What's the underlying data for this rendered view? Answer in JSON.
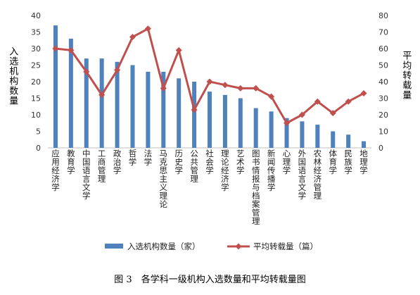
{
  "chart_data": {
    "type": "bar",
    "categories": [
      "应用经济学",
      "教育学",
      "中国语言文学",
      "工商管理",
      "政治学",
      "哲学",
      "法学",
      "马克思主义理论",
      "历史学",
      "公共管理",
      "社会学",
      "理论经济学",
      "艺术学",
      "图书情报与档案管理",
      "新闻传播学",
      "心理学",
      "外国语言文学",
      "农林经济管理",
      "体育学",
      "民族学",
      "地理学"
    ],
    "series": [
      {
        "name": "入选机构数量（家）",
        "axis": "left",
        "kind": "bar",
        "color": "#4f81bd",
        "values": [
          37,
          33,
          27,
          27,
          26,
          25,
          23,
          23,
          21,
          20,
          17,
          16,
          15,
          12,
          11,
          9,
          8,
          7,
          5,
          4,
          2
        ]
      },
      {
        "name": "平均转载量（篇）",
        "axis": "right",
        "kind": "line",
        "color": "#c0504d",
        "values": [
          60,
          59,
          46,
          32,
          47,
          67,
          72,
          36,
          59,
          23,
          40,
          38,
          36,
          36,
          31,
          15,
          20,
          28,
          21,
          28,
          33
        ]
      }
    ],
    "ylabel": "入选机构数量",
    "y2label": "平均转载量",
    "ylim": [
      0,
      40
    ],
    "yticks": [
      0,
      5,
      10,
      15,
      20,
      25,
      30,
      35,
      40
    ],
    "y2lim": [
      0,
      80
    ],
    "y2ticks": [
      0,
      10,
      20,
      30,
      40,
      50,
      60,
      70,
      80
    ],
    "legend_position": "bottom",
    "grid": false
  },
  "caption": "图 3　各学科一级机构入选数量和平均转载量图"
}
